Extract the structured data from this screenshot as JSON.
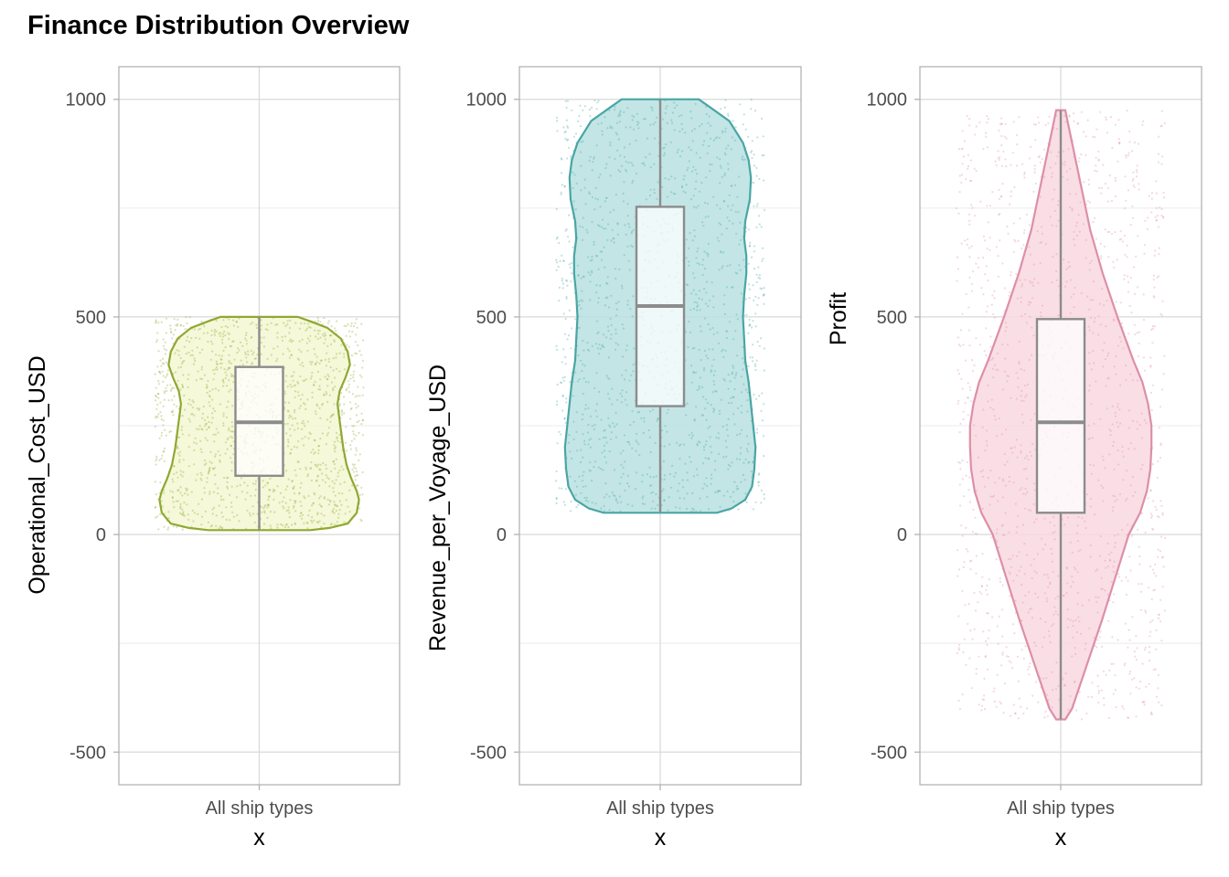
{
  "title": "Finance Distribution Overview",
  "chart_data": [
    {
      "type": "violin",
      "ylabel": "Operational_Cost_USD",
      "xlabel": "x",
      "categories": [
        "All ship types"
      ],
      "ylim": [
        -575,
        1075
      ],
      "yticks": [
        "-500",
        "0",
        "500",
        "1000"
      ],
      "color": "#8fa832",
      "fill": "#f3f7d2",
      "min": 10,
      "q1": 135,
      "median": 258,
      "q3": 385,
      "max": 500,
      "violin_profile": [
        [
          10,
          0.45
        ],
        [
          15,
          0.62
        ],
        [
          25,
          0.78
        ],
        [
          50,
          0.86
        ],
        [
          80,
          0.88
        ],
        [
          100,
          0.86
        ],
        [
          130,
          0.81
        ],
        [
          160,
          0.77
        ],
        [
          200,
          0.74
        ],
        [
          240,
          0.72
        ],
        [
          280,
          0.7
        ],
        [
          300,
          0.69
        ],
        [
          330,
          0.71
        ],
        [
          360,
          0.76
        ],
        [
          390,
          0.8
        ],
        [
          420,
          0.78
        ],
        [
          450,
          0.72
        ],
        [
          475,
          0.6
        ],
        [
          490,
          0.45
        ],
        [
          500,
          0.34
        ]
      ]
    },
    {
      "type": "violin",
      "ylabel": "Revenue_per_Voyage_USD",
      "xlabel": "x",
      "categories": [
        "All ship types"
      ],
      "ylim": [
        -575,
        1075
      ],
      "yticks": [
        "-500",
        "0",
        "500",
        "1000"
      ],
      "color": "#4aa5a5",
      "fill": "#b8e0e0",
      "min": 50,
      "q1": 295,
      "median": 525,
      "q3": 753,
      "max": 1000,
      "violin_profile": [
        [
          50,
          0.5
        ],
        [
          60,
          0.63
        ],
        [
          80,
          0.75
        ],
        [
          110,
          0.81
        ],
        [
          150,
          0.83
        ],
        [
          200,
          0.84
        ],
        [
          250,
          0.82
        ],
        [
          300,
          0.8
        ],
        [
          350,
          0.78
        ],
        [
          400,
          0.75
        ],
        [
          450,
          0.74
        ],
        [
          500,
          0.73
        ],
        [
          550,
          0.74
        ],
        [
          600,
          0.76
        ],
        [
          640,
          0.76
        ],
        [
          680,
          0.74
        ],
        [
          720,
          0.75
        ],
        [
          770,
          0.79
        ],
        [
          820,
          0.8
        ],
        [
          860,
          0.78
        ],
        [
          900,
          0.73
        ],
        [
          950,
          0.61
        ],
        [
          980,
          0.45
        ],
        [
          1000,
          0.34
        ]
      ]
    },
    {
      "type": "violin",
      "ylabel": "Profit",
      "xlabel": "x",
      "categories": [
        "All ship types"
      ],
      "ylim": [
        -575,
        1075
      ],
      "yticks": [
        "-500",
        "0",
        "500",
        "1000"
      ],
      "color": "#dd8fa8",
      "fill": "#f9d8e1",
      "min": -425,
      "q1": 50,
      "median": 258,
      "q3": 495,
      "max": 975,
      "violin_profile": [
        [
          -425,
          0.04
        ],
        [
          -400,
          0.1
        ],
        [
          -300,
          0.23
        ],
        [
          -200,
          0.36
        ],
        [
          -100,
          0.48
        ],
        [
          0,
          0.6
        ],
        [
          50,
          0.7
        ],
        [
          100,
          0.76
        ],
        [
          150,
          0.79
        ],
        [
          200,
          0.8
        ],
        [
          250,
          0.8
        ],
        [
          300,
          0.77
        ],
        [
          350,
          0.72
        ],
        [
          400,
          0.64
        ],
        [
          450,
          0.57
        ],
        [
          500,
          0.5
        ],
        [
          600,
          0.37
        ],
        [
          700,
          0.26
        ],
        [
          800,
          0.18
        ],
        [
          900,
          0.1
        ],
        [
          950,
          0.06
        ],
        [
          975,
          0.04
        ]
      ]
    }
  ]
}
